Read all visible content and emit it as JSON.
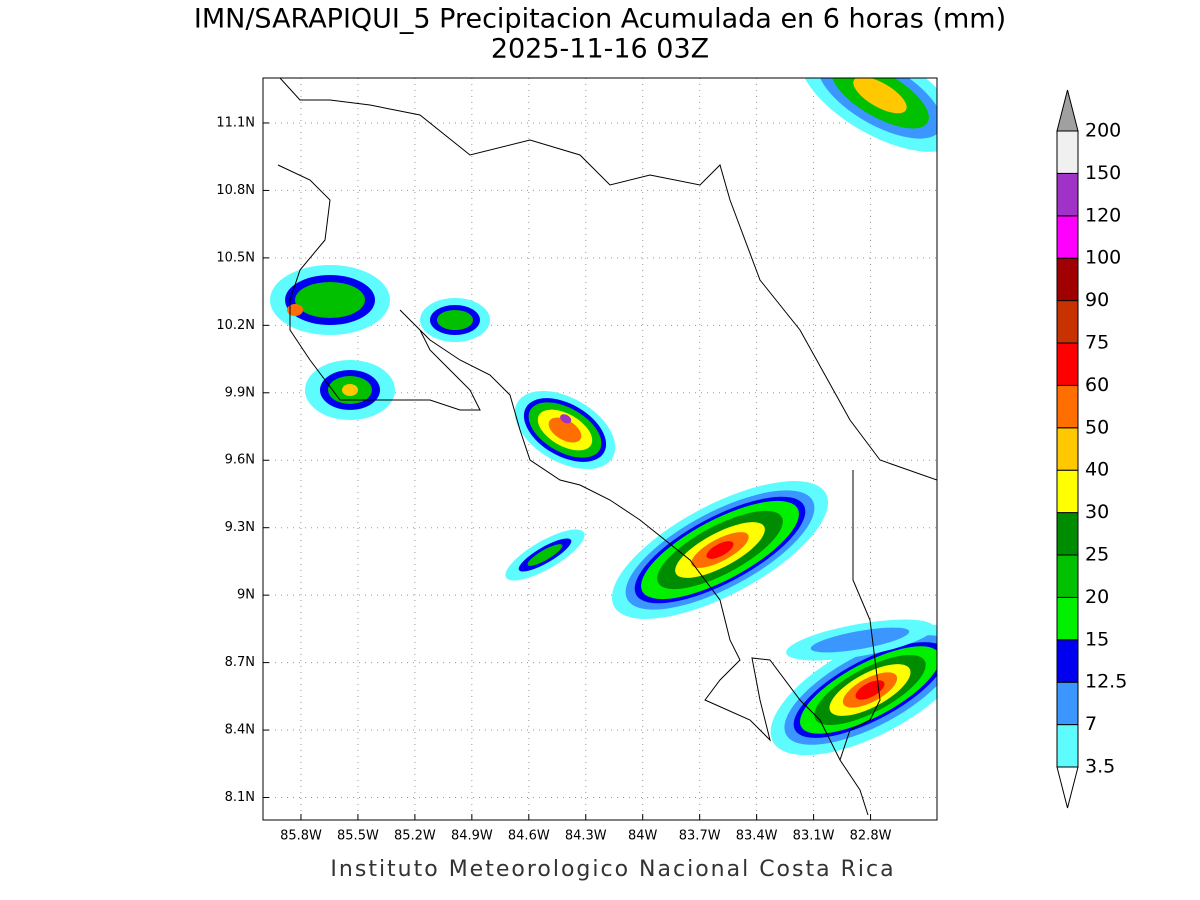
{
  "chart_data": {
    "type": "map",
    "title": "IMN/SARAPIQUI_5 Precipitacion Acumulada en 6 horas (mm)",
    "subtitle": "2025-11-16 03Z",
    "footer": "Instituto Meteorologico Nacional Costa Rica",
    "xlim": [
      -86.0,
      -82.45
    ],
    "ylim": [
      8.0,
      11.3
    ],
    "xticks": [
      {
        "value": -85.8,
        "label": "85.8W"
      },
      {
        "value": -85.5,
        "label": "85.5W"
      },
      {
        "value": -85.2,
        "label": "85.2W"
      },
      {
        "value": -84.9,
        "label": "84.9W"
      },
      {
        "value": -84.6,
        "label": "84.6W"
      },
      {
        "value": -84.3,
        "label": "84.3W"
      },
      {
        "value": -84.0,
        "label": "84W"
      },
      {
        "value": -83.7,
        "label": "83.7W"
      },
      {
        "value": -83.4,
        "label": "83.4W"
      },
      {
        "value": -83.1,
        "label": "83.1W"
      },
      {
        "value": -82.8,
        "label": "82.8W"
      }
    ],
    "yticks": [
      {
        "value": 8.1,
        "label": "8.1N"
      },
      {
        "value": 8.4,
        "label": "8.4N"
      },
      {
        "value": 8.7,
        "label": "8.7N"
      },
      {
        "value": 9.0,
        "label": "9N"
      },
      {
        "value": 9.3,
        "label": "9.3N"
      },
      {
        "value": 9.6,
        "label": "9.6N"
      },
      {
        "value": 9.9,
        "label": "9.9N"
      },
      {
        "value": 10.2,
        "label": "10.2N"
      },
      {
        "value": 10.5,
        "label": "10.5N"
      },
      {
        "value": 10.8,
        "label": "10.8N"
      },
      {
        "value": 11.1,
        "label": "11.1N"
      }
    ],
    "grid": true,
    "colorbar": {
      "levels": [
        3.5,
        7,
        12.5,
        15,
        20,
        25,
        30,
        40,
        50,
        60,
        75,
        90,
        100,
        120,
        150,
        200
      ],
      "colors": [
        "#5ffcff",
        "#3c96ff",
        "#0000f0",
        "#00f000",
        "#00c000",
        "#008c00",
        "#ffff00",
        "#ffc800",
        "#ff6e00",
        "#ff0000",
        "#c83200",
        "#a00000",
        "#ff00ff",
        "#a032c8",
        "#f0f0f0"
      ],
      "under_color": "#ffffff",
      "over_color": "#a0a0a0"
    }
  }
}
